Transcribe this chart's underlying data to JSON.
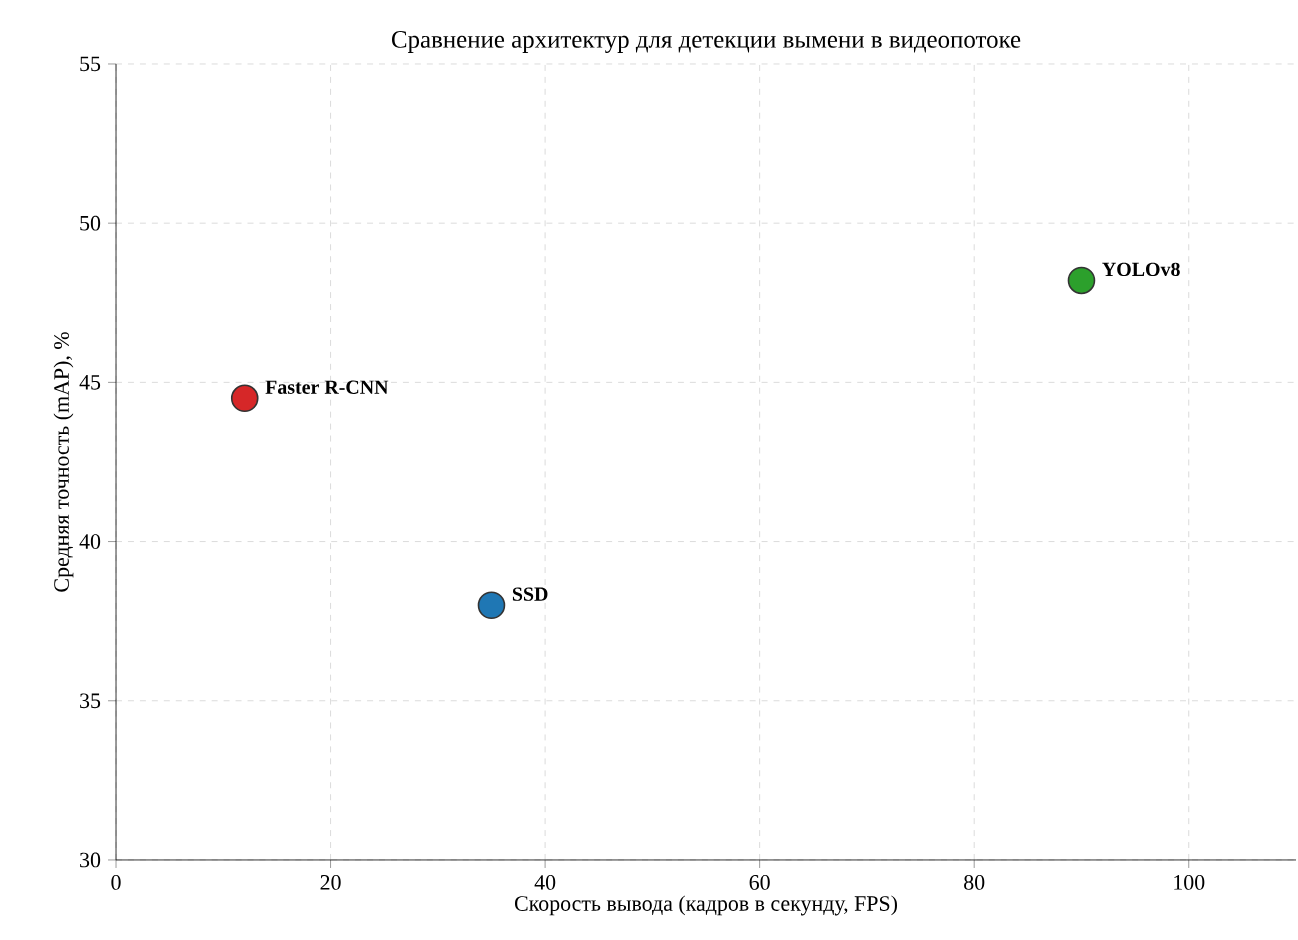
{
  "chart_data": {
    "type": "scatter",
    "title": "Сравнение архитектур для детекции вымени в видеопотоке",
    "xlabel": "Скорость вывода (кадров в секунду, FPS)",
    "ylabel": "Средняя точность (mAP), %",
    "series": [
      {
        "name": "Faster R-CNN",
        "color": "#d62728",
        "x": [
          12
        ],
        "values": [
          44.5
        ]
      },
      {
        "name": "SSD",
        "color": "#1f77b4",
        "x": [
          35
        ],
        "values": [
          38
        ]
      },
      {
        "name": "YOLOv8",
        "color": "#2ca02c",
        "x": [
          90
        ],
        "values": [
          48.2
        ]
      }
    ],
    "xlim": [
      0,
      110
    ],
    "ylim": [
      30,
      55
    ],
    "xticks": [
      0,
      20,
      40,
      60,
      80,
      100
    ],
    "yticks": [
      30,
      35,
      40,
      45,
      50,
      55
    ],
    "grid": true
  }
}
